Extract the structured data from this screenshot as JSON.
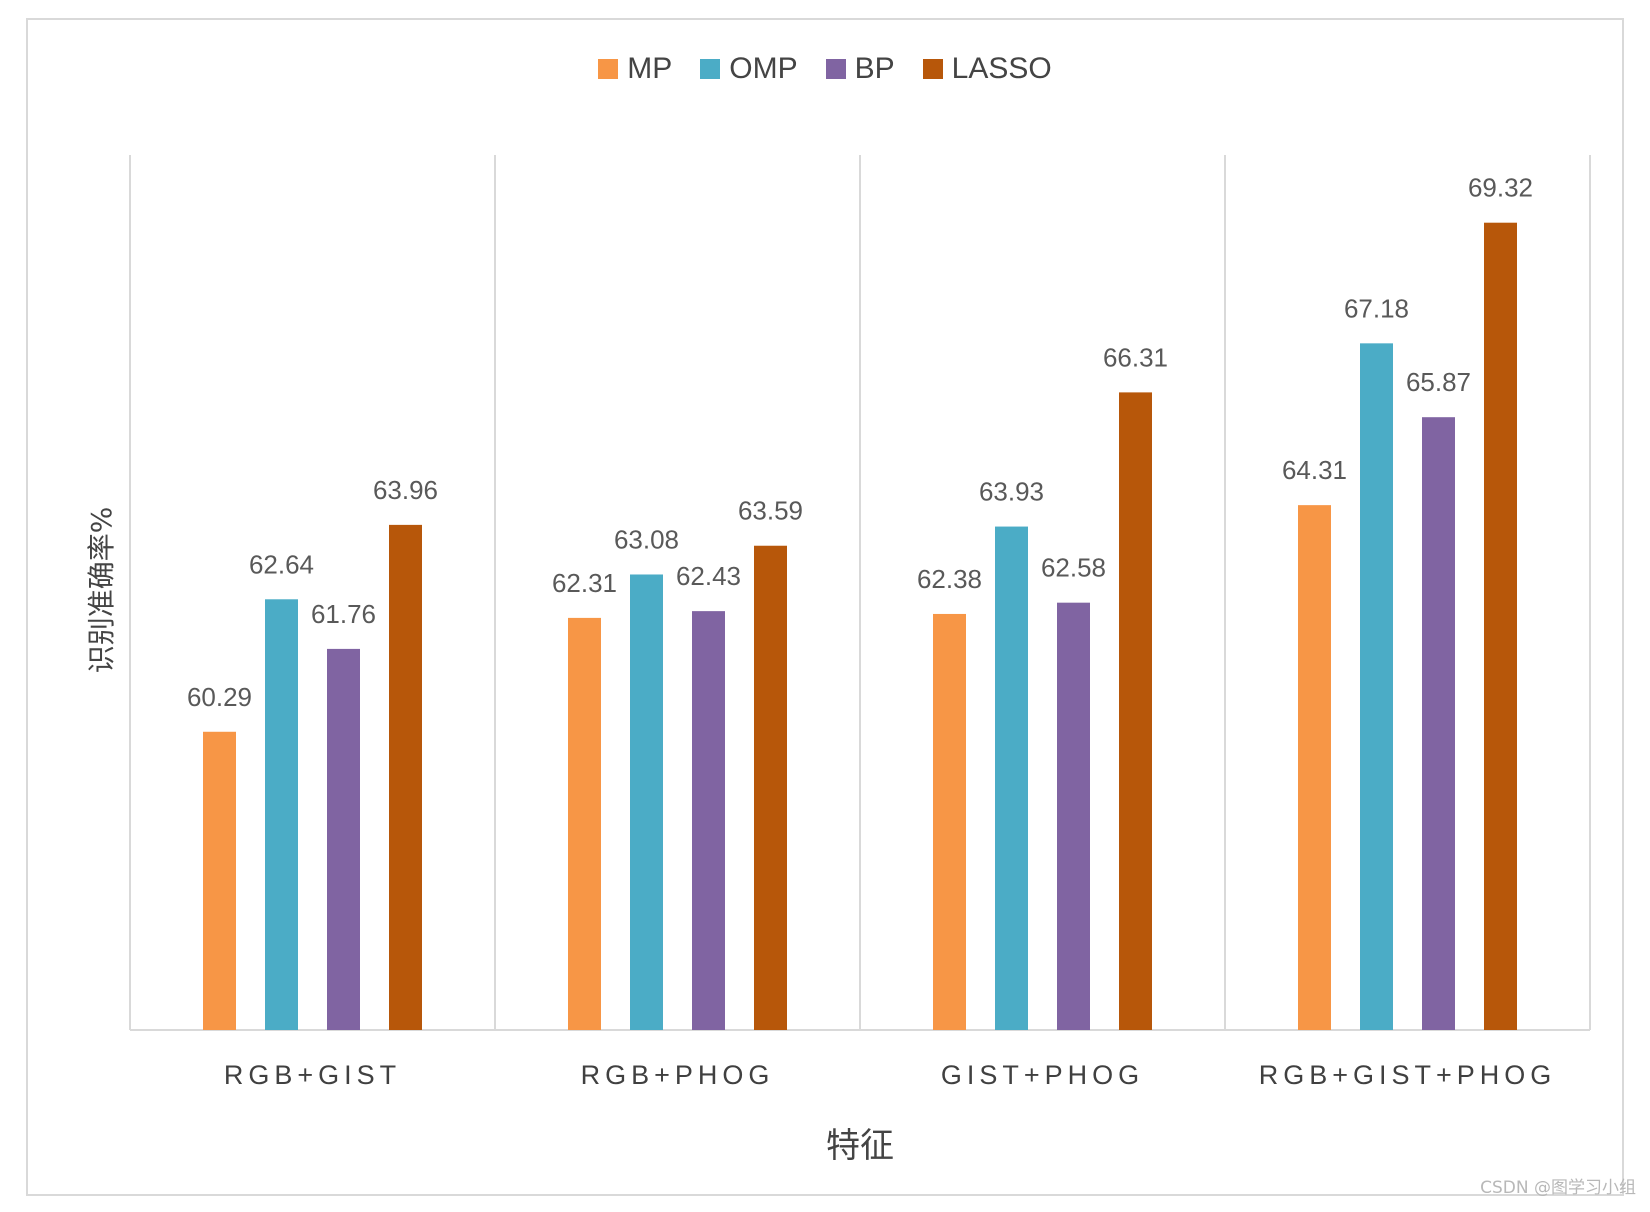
{
  "chart_data": {
    "type": "bar",
    "title": "",
    "xlabel": "特征",
    "ylabel": "识别准确率%",
    "categories": [
      "RGB+GIST",
      "RGB+PHOG",
      "GIST+PHOG",
      "RGB+GIST+PHOG"
    ],
    "series": [
      {
        "name": "MP",
        "color": "#f79646",
        "values": [
          60.29,
          62.31,
          62.38,
          64.31
        ]
      },
      {
        "name": "OMP",
        "color": "#4bacc6",
        "values": [
          62.64,
          63.08,
          63.93,
          67.18
        ]
      },
      {
        "name": "BP",
        "color": "#8064a2",
        "values": [
          61.76,
          62.43,
          62.58,
          65.87
        ]
      },
      {
        "name": "LASSO",
        "color": "#b7570a",
        "values": [
          63.96,
          63.59,
          66.31,
          69.32
        ]
      }
    ],
    "ylim": [
      55,
      70
    ],
    "grid": false,
    "legend_position": "top-center",
    "data_labels": true
  },
  "watermark": "CSDN @图学习小组"
}
